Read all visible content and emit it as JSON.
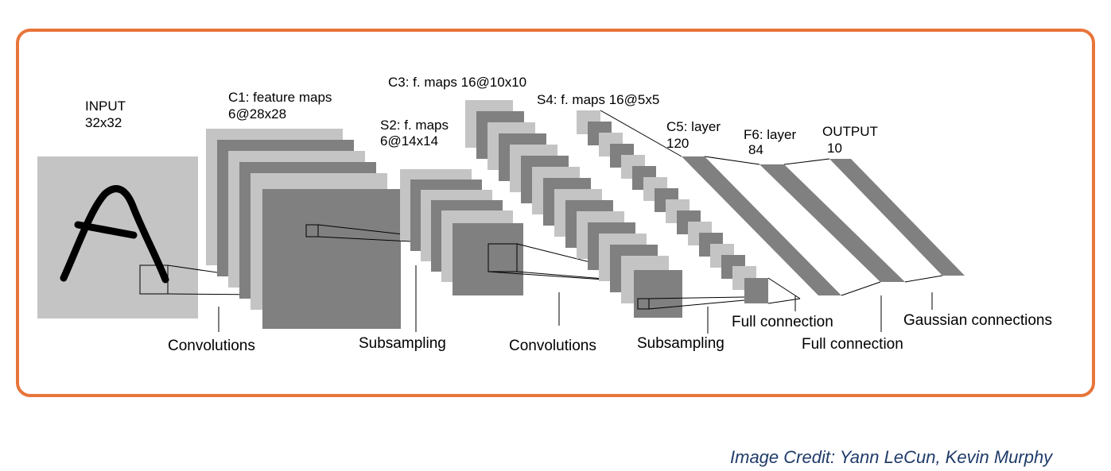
{
  "labels": {
    "input_title": "INPUT",
    "input_size": "32x32",
    "c1_title": "C1: feature maps",
    "c1_size": "6@28x28",
    "s2_title": "S2: f. maps",
    "s2_size": "6@14x14",
    "c3": "C3: f. maps 16@10x10",
    "s4": "S4: f. maps 16@5x5",
    "c5_title": "C5: layer",
    "c5_size": "120",
    "f6_title": "F6: layer",
    "f6_size": "84",
    "output_title": "OUTPUT",
    "output_size": "10"
  },
  "operations": {
    "conv1": "Convolutions",
    "sub1": "Subsampling",
    "conv2": "Convolutions",
    "sub2": "Subsampling",
    "full1": "Full connection",
    "full2": "Full connection",
    "gauss": "Gaussian connections"
  },
  "credit": "Image Credit: Yann LeCun, Kevin Murphy",
  "colors": {
    "frame": "#e8753a",
    "light_gray": "#c4c4c4",
    "dark_gray": "#808080",
    "credit_text": "#1f3b6a"
  }
}
